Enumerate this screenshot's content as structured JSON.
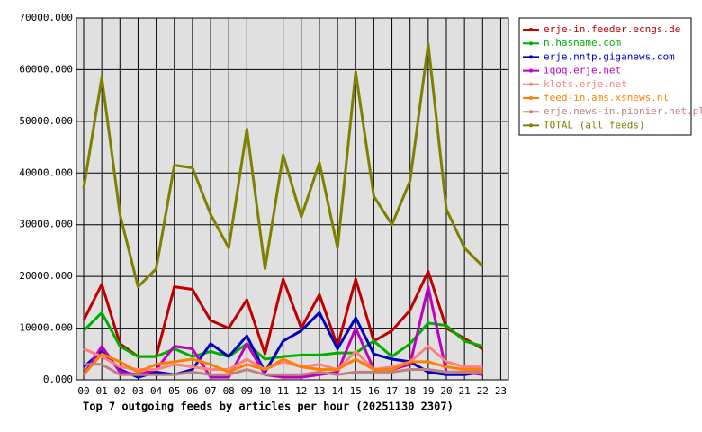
{
  "chart_data": {
    "type": "line",
    "title": "Top 7 outgoing feeds by articles per hour (20251130 2307)",
    "categories": [
      "00",
      "01",
      "02",
      "03",
      "04",
      "05",
      "06",
      "07",
      "08",
      "09",
      "10",
      "11",
      "12",
      "13",
      "14",
      "15",
      "16",
      "17",
      "18",
      "19",
      "20",
      "21",
      "22",
      "23"
    ],
    "ylim": [
      0,
      70000
    ],
    "yticks": [
      {
        "value": 0,
        "label": "0.000"
      },
      {
        "value": 10000,
        "label": "10000.000"
      },
      {
        "value": 20000,
        "label": "20000.000"
      },
      {
        "value": 30000,
        "label": "30000.000"
      },
      {
        "value": 40000,
        "label": "40000.000"
      },
      {
        "value": 50000,
        "label": "50000.000"
      },
      {
        "value": 60000,
        "label": "60000.000"
      },
      {
        "value": 70000,
        "label": "70000.000"
      }
    ],
    "grid": true,
    "legend": "right",
    "series": [
      {
        "name": "erje-in.feeder.ecngs.de",
        "color": "#c00000",
        "values": [
          11500,
          18500,
          7000,
          4500,
          4500,
          18000,
          17500,
          11500,
          10000,
          15500,
          5000,
          19500,
          10000,
          16500,
          6500,
          19500,
          7500,
          9500,
          13500,
          21000,
          10000,
          8000,
          6000,
          null
        ]
      },
      {
        "name": "n.hasname.com",
        "color": "#00b000",
        "values": [
          9500,
          13000,
          6500,
          4500,
          4500,
          6000,
          4500,
          5500,
          4500,
          7000,
          4000,
          4500,
          4800,
          4800,
          5200,
          5200,
          7500,
          4500,
          7000,
          11000,
          10500,
          7500,
          6500,
          null
        ]
      },
      {
        "name": "erje.nntp.giganews.com",
        "color": "#0000c0",
        "values": [
          2500,
          5500,
          2000,
          500,
          1500,
          1000,
          2000,
          7000,
          4500,
          8500,
          1500,
          7500,
          9500,
          13000,
          6000,
          12000,
          5000,
          4000,
          3500,
          1500,
          1000,
          1000,
          1500,
          null
        ]
      },
      {
        "name": "iqoq.erje.net",
        "color": "#c000c0",
        "values": [
          1000,
          6500,
          1500,
          1000,
          2000,
          6500,
          6000,
          500,
          500,
          7000,
          1000,
          500,
          500,
          1000,
          1500,
          10000,
          2000,
          2000,
          3000,
          18000,
          1500,
          1500,
          1000,
          null
        ]
      },
      {
        "name": "klots.erje.net",
        "color": "#ff8080",
        "values": [
          6000,
          4500,
          2500,
          2000,
          2000,
          3000,
          2500,
          2000,
          2000,
          4000,
          2000,
          3500,
          2500,
          3000,
          2000,
          5500,
          2000,
          2500,
          3500,
          6500,
          3500,
          2500,
          2500,
          null
        ]
      },
      {
        "name": "feed-in.ams.xsnews.nl",
        "color": "#ff8000",
        "values": [
          1000,
          5000,
          3500,
          1500,
          3000,
          3500,
          4000,
          3000,
          1500,
          3000,
          2000,
          4000,
          2500,
          2000,
          2000,
          4000,
          2000,
          2000,
          3500,
          3500,
          2500,
          2000,
          2000,
          null
        ]
      },
      {
        "name": "erje.news-in.pionier.net.pl",
        "color": "#c08080",
        "values": [
          3000,
          3000,
          1000,
          1000,
          1000,
          1000,
          1500,
          1000,
          1000,
          2000,
          1000,
          1000,
          1000,
          1500,
          1000,
          1500,
          1500,
          1500,
          2000,
          2000,
          1500,
          1500,
          1500,
          null
        ]
      },
      {
        "name": "TOTAL (all feeds)",
        "color": "#808000",
        "values": [
          37000,
          58500,
          32000,
          18000,
          21500,
          41500,
          41000,
          32000,
          25500,
          48500,
          21500,
          43500,
          31500,
          42000,
          25500,
          59500,
          35500,
          30000,
          38500,
          65000,
          33000,
          25500,
          22000,
          null
        ]
      }
    ]
  }
}
